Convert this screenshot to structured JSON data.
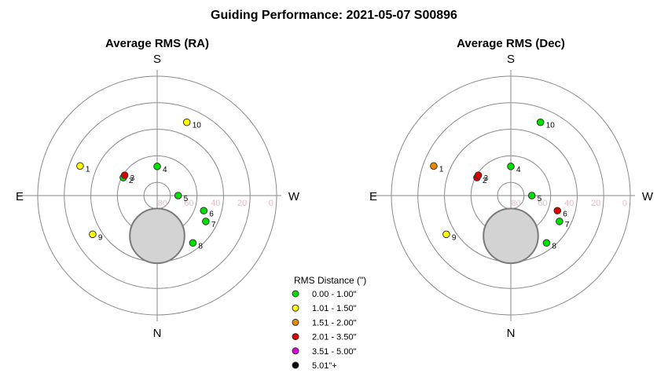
{
  "chart_title": "Guiding Performance: 2021-05-07  S00896",
  "compass": {
    "top": "S",
    "bottom": "N",
    "left": "E",
    "right": "W"
  },
  "altitude_ticks": [
    "80",
    "60",
    "40",
    "20",
    "0"
  ],
  "legend": {
    "title": "RMS Distance (\")",
    "items": [
      {
        "label": "0.00 - 1.00\"",
        "color": "#00e000"
      },
      {
        "label": "1.01 - 1.50\"",
        "color": "#ffff00"
      },
      {
        "label": "1.51 - 2.00\"",
        "color": "#e88a00"
      },
      {
        "label": "2.01 - 3.50\"",
        "color": "#e00000"
      },
      {
        "label": "3.51 - 5.00\"",
        "color": "#e000e0"
      },
      {
        "label": "5.01\"+",
        "color": "#000000"
      }
    ]
  },
  "chart_data": [
    {
      "type": "scatter",
      "projection": "polar",
      "title": "Average RMS (RA)",
      "r_axis": "altitude",
      "r_ticks": [
        80,
        60,
        40,
        20,
        0
      ],
      "points": [
        {
          "label": "1",
          "alt": 27.8,
          "az": 291,
          "color": "#ffff00"
        },
        {
          "label": "2",
          "alt": 61.1,
          "az": 298,
          "color": "#00e000"
        },
        {
          "label": "3",
          "alt": 61.1,
          "az": 302,
          "color": "#e00000"
        },
        {
          "label": "4",
          "alt": 68.0,
          "az": 0,
          "color": "#00e000"
        },
        {
          "label": "5",
          "alt": 74.2,
          "az": 90,
          "color": "#00e000"
        },
        {
          "label": "6",
          "alt": 53.1,
          "az": 108,
          "color": "#00e000"
        },
        {
          "label": "7",
          "alt": 48.5,
          "az": 118,
          "color": "#00e000"
        },
        {
          "label": "8",
          "alt": 45.3,
          "az": 143,
          "color": "#00e000"
        },
        {
          "label": "9",
          "alt": 33.3,
          "az": 239,
          "color": "#ffff00"
        },
        {
          "label": "10",
          "alt": 30.4,
          "az": 22,
          "color": "#ffff00"
        }
      ],
      "obscured_region": {
        "center_alt": 59.6,
        "center_az": 180,
        "radius_deg": 20.6
      }
    },
    {
      "type": "scatter",
      "projection": "polar",
      "title": "Average RMS (Dec)",
      "r_axis": "altitude",
      "r_ticks": [
        80,
        60,
        40,
        20,
        0
      ],
      "points": [
        {
          "label": "1",
          "alt": 27.8,
          "az": 291,
          "color": "#e88a00"
        },
        {
          "label": "2",
          "alt": 61.1,
          "az": 298,
          "color": "#e00000"
        },
        {
          "label": "3",
          "alt": 61.1,
          "az": 302,
          "color": "#e00000"
        },
        {
          "label": "4",
          "alt": 68.0,
          "az": 0,
          "color": "#00e000"
        },
        {
          "label": "5",
          "alt": 74.2,
          "az": 90,
          "color": "#00e000"
        },
        {
          "label": "6",
          "alt": 53.1,
          "az": 108,
          "color": "#e00000"
        },
        {
          "label": "7",
          "alt": 48.5,
          "az": 118,
          "color": "#00e000"
        },
        {
          "label": "8",
          "alt": 45.3,
          "az": 143,
          "color": "#00e000"
        },
        {
          "label": "9",
          "alt": 33.3,
          "az": 239,
          "color": "#ffff00"
        },
        {
          "label": "10",
          "alt": 30.4,
          "az": 22,
          "color": "#00e000"
        }
      ],
      "obscured_region": {
        "center_alt": 59.6,
        "center_az": 180,
        "radius_deg": 20.6
      }
    }
  ]
}
